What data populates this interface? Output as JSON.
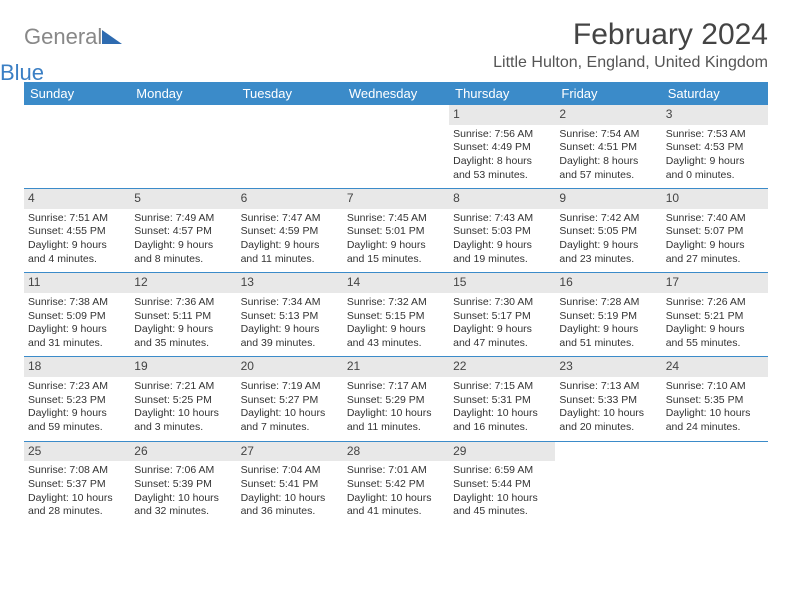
{
  "brand": {
    "part1": "General",
    "part2": "Blue"
  },
  "title": "February 2024",
  "location": "Little Hulton, England, United Kingdom",
  "colors": {
    "header_bg": "#3b8bc9",
    "header_text": "#ffffff",
    "daynum_bg": "#e8e8e8",
    "border": "#3b8bc9",
    "text": "#333333"
  },
  "font": {
    "family": "Arial",
    "title_size": 30,
    "location_size": 16,
    "header_size": 13,
    "cell_size": 10.5,
    "daynum_size": 12
  },
  "headers": [
    "Sunday",
    "Monday",
    "Tuesday",
    "Wednesday",
    "Thursday",
    "Friday",
    "Saturday"
  ],
  "weeks": [
    [
      null,
      null,
      null,
      null,
      {
        "day": "1",
        "sunrise": "Sunrise: 7:56 AM",
        "sunset": "Sunset: 4:49 PM",
        "daylight": "Daylight: 8 hours and 53 minutes."
      },
      {
        "day": "2",
        "sunrise": "Sunrise: 7:54 AM",
        "sunset": "Sunset: 4:51 PM",
        "daylight": "Daylight: 8 hours and 57 minutes."
      },
      {
        "day": "3",
        "sunrise": "Sunrise: 7:53 AM",
        "sunset": "Sunset: 4:53 PM",
        "daylight": "Daylight: 9 hours and 0 minutes."
      }
    ],
    [
      {
        "day": "4",
        "sunrise": "Sunrise: 7:51 AM",
        "sunset": "Sunset: 4:55 PM",
        "daylight": "Daylight: 9 hours and 4 minutes."
      },
      {
        "day": "5",
        "sunrise": "Sunrise: 7:49 AM",
        "sunset": "Sunset: 4:57 PM",
        "daylight": "Daylight: 9 hours and 8 minutes."
      },
      {
        "day": "6",
        "sunrise": "Sunrise: 7:47 AM",
        "sunset": "Sunset: 4:59 PM",
        "daylight": "Daylight: 9 hours and 11 minutes."
      },
      {
        "day": "7",
        "sunrise": "Sunrise: 7:45 AM",
        "sunset": "Sunset: 5:01 PM",
        "daylight": "Daylight: 9 hours and 15 minutes."
      },
      {
        "day": "8",
        "sunrise": "Sunrise: 7:43 AM",
        "sunset": "Sunset: 5:03 PM",
        "daylight": "Daylight: 9 hours and 19 minutes."
      },
      {
        "day": "9",
        "sunrise": "Sunrise: 7:42 AM",
        "sunset": "Sunset: 5:05 PM",
        "daylight": "Daylight: 9 hours and 23 minutes."
      },
      {
        "day": "10",
        "sunrise": "Sunrise: 7:40 AM",
        "sunset": "Sunset: 5:07 PM",
        "daylight": "Daylight: 9 hours and 27 minutes."
      }
    ],
    [
      {
        "day": "11",
        "sunrise": "Sunrise: 7:38 AM",
        "sunset": "Sunset: 5:09 PM",
        "daylight": "Daylight: 9 hours and 31 minutes."
      },
      {
        "day": "12",
        "sunrise": "Sunrise: 7:36 AM",
        "sunset": "Sunset: 5:11 PM",
        "daylight": "Daylight: 9 hours and 35 minutes."
      },
      {
        "day": "13",
        "sunrise": "Sunrise: 7:34 AM",
        "sunset": "Sunset: 5:13 PM",
        "daylight": "Daylight: 9 hours and 39 minutes."
      },
      {
        "day": "14",
        "sunrise": "Sunrise: 7:32 AM",
        "sunset": "Sunset: 5:15 PM",
        "daylight": "Daylight: 9 hours and 43 minutes."
      },
      {
        "day": "15",
        "sunrise": "Sunrise: 7:30 AM",
        "sunset": "Sunset: 5:17 PM",
        "daylight": "Daylight: 9 hours and 47 minutes."
      },
      {
        "day": "16",
        "sunrise": "Sunrise: 7:28 AM",
        "sunset": "Sunset: 5:19 PM",
        "daylight": "Daylight: 9 hours and 51 minutes."
      },
      {
        "day": "17",
        "sunrise": "Sunrise: 7:26 AM",
        "sunset": "Sunset: 5:21 PM",
        "daylight": "Daylight: 9 hours and 55 minutes."
      }
    ],
    [
      {
        "day": "18",
        "sunrise": "Sunrise: 7:23 AM",
        "sunset": "Sunset: 5:23 PM",
        "daylight": "Daylight: 9 hours and 59 minutes."
      },
      {
        "day": "19",
        "sunrise": "Sunrise: 7:21 AM",
        "sunset": "Sunset: 5:25 PM",
        "daylight": "Daylight: 10 hours and 3 minutes."
      },
      {
        "day": "20",
        "sunrise": "Sunrise: 7:19 AM",
        "sunset": "Sunset: 5:27 PM",
        "daylight": "Daylight: 10 hours and 7 minutes."
      },
      {
        "day": "21",
        "sunrise": "Sunrise: 7:17 AM",
        "sunset": "Sunset: 5:29 PM",
        "daylight": "Daylight: 10 hours and 11 minutes."
      },
      {
        "day": "22",
        "sunrise": "Sunrise: 7:15 AM",
        "sunset": "Sunset: 5:31 PM",
        "daylight": "Daylight: 10 hours and 16 minutes."
      },
      {
        "day": "23",
        "sunrise": "Sunrise: 7:13 AM",
        "sunset": "Sunset: 5:33 PM",
        "daylight": "Daylight: 10 hours and 20 minutes."
      },
      {
        "day": "24",
        "sunrise": "Sunrise: 7:10 AM",
        "sunset": "Sunset: 5:35 PM",
        "daylight": "Daylight: 10 hours and 24 minutes."
      }
    ],
    [
      {
        "day": "25",
        "sunrise": "Sunrise: 7:08 AM",
        "sunset": "Sunset: 5:37 PM",
        "daylight": "Daylight: 10 hours and 28 minutes."
      },
      {
        "day": "26",
        "sunrise": "Sunrise: 7:06 AM",
        "sunset": "Sunset: 5:39 PM",
        "daylight": "Daylight: 10 hours and 32 minutes."
      },
      {
        "day": "27",
        "sunrise": "Sunrise: 7:04 AM",
        "sunset": "Sunset: 5:41 PM",
        "daylight": "Daylight: 10 hours and 36 minutes."
      },
      {
        "day": "28",
        "sunrise": "Sunrise: 7:01 AM",
        "sunset": "Sunset: 5:42 PM",
        "daylight": "Daylight: 10 hours and 41 minutes."
      },
      {
        "day": "29",
        "sunrise": "Sunrise: 6:59 AM",
        "sunset": "Sunset: 5:44 PM",
        "daylight": "Daylight: 10 hours and 45 minutes."
      },
      null,
      null
    ]
  ]
}
